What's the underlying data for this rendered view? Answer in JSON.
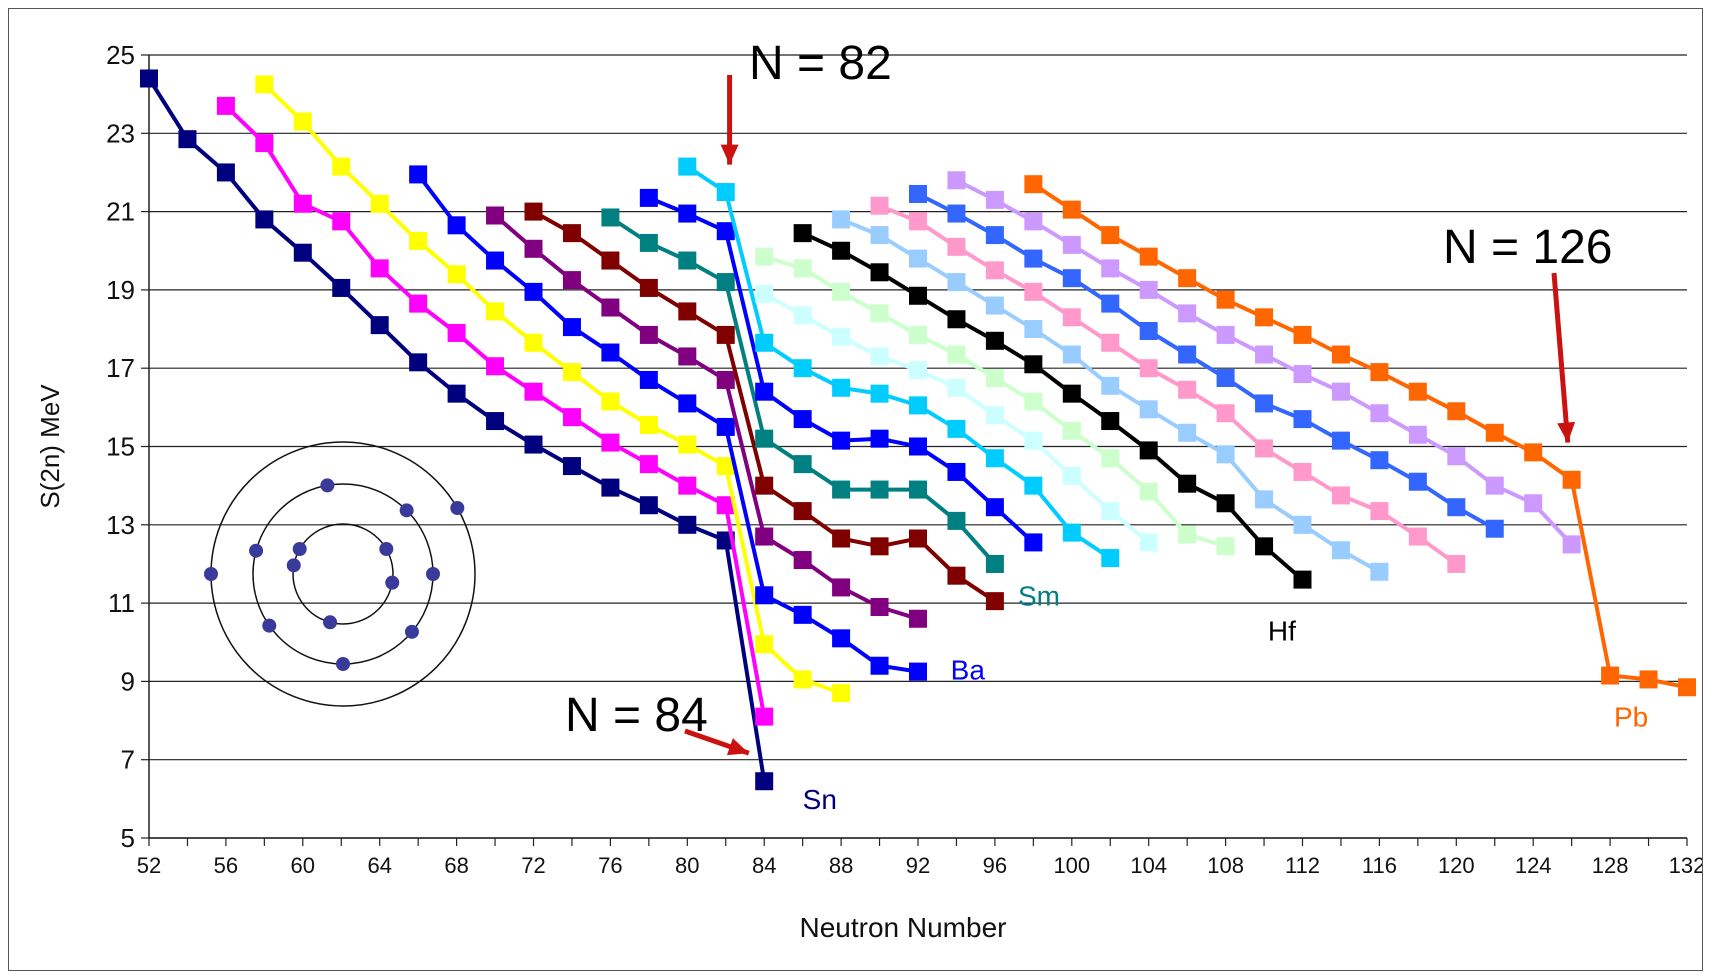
{
  "chart_data": {
    "type": "line",
    "xlabel": "Neutron Number",
    "ylabel": "S(2n) MeV",
    "xlim": [
      52,
      132
    ],
    "ylim": [
      5,
      25
    ],
    "x_ticks": [
      "52",
      "56",
      "60",
      "64",
      "68",
      "72",
      "76",
      "80",
      "84",
      "88",
      "92",
      "96",
      "100",
      "104",
      "108",
      "112",
      "116",
      "120",
      "124",
      "128",
      "132"
    ],
    "y_ticks": [
      "5",
      "7",
      "9",
      "11",
      "13",
      "15",
      "17",
      "19",
      "21",
      "23",
      "25"
    ],
    "grid": "horizontal",
    "annotations": [
      {
        "text": "N = 82",
        "x": 82.2,
        "y": 22.2
      },
      {
        "text": "N = 84",
        "x": 83.2,
        "y": 6.4
      },
      {
        "text": "N = 126",
        "x": 125.8,
        "y": 15.1
      }
    ],
    "series": [
      {
        "name": "Sn",
        "label_at": [
          86.0,
          6.0
        ],
        "color": "#00007f",
        "points": [
          [
            52,
            24.4
          ],
          [
            54,
            22.85
          ],
          [
            56,
            22.0
          ],
          [
            58,
            20.8
          ],
          [
            60,
            19.95
          ],
          [
            62,
            19.05
          ],
          [
            64,
            18.1
          ],
          [
            66,
            17.15
          ],
          [
            68,
            16.35
          ],
          [
            70,
            15.65
          ],
          [
            72,
            15.05
          ],
          [
            74,
            14.5
          ],
          [
            76,
            13.95
          ],
          [
            78,
            13.5
          ],
          [
            80,
            13.0
          ],
          [
            82,
            12.6
          ],
          [
            84,
            6.45
          ]
        ]
      },
      {
        "name": "",
        "color": "#ff00ff",
        "points": [
          [
            56,
            23.7
          ],
          [
            58,
            22.75
          ],
          [
            60,
            21.2
          ],
          [
            62,
            20.75
          ],
          [
            64,
            19.55
          ],
          [
            66,
            18.65
          ],
          [
            68,
            17.9
          ],
          [
            70,
            17.05
          ],
          [
            72,
            16.4
          ],
          [
            74,
            15.75
          ],
          [
            76,
            15.1
          ],
          [
            78,
            14.55
          ],
          [
            80,
            14.0
          ],
          [
            82,
            13.5
          ],
          [
            84,
            8.1
          ]
        ]
      },
      {
        "name": "",
        "color": "#ffff00",
        "points": [
          [
            58,
            24.25
          ],
          [
            60,
            23.3
          ],
          [
            62,
            22.15
          ],
          [
            64,
            21.2
          ],
          [
            66,
            20.25
          ],
          [
            68,
            19.4
          ],
          [
            70,
            18.45
          ],
          [
            72,
            17.65
          ],
          [
            74,
            16.9
          ],
          [
            76,
            16.15
          ],
          [
            78,
            15.55
          ],
          [
            80,
            15.05
          ],
          [
            82,
            14.5
          ],
          [
            84,
            9.95
          ],
          [
            86,
            9.05
          ],
          [
            88,
            8.7
          ]
        ]
      },
      {
        "name": "Ba",
        "label_at": [
          93.7,
          9.3
        ],
        "color": "#0000ff",
        "points": [
          [
            66,
            21.95
          ],
          [
            68,
            20.65
          ],
          [
            70,
            19.75
          ],
          [
            72,
            18.95
          ],
          [
            74,
            18.05
          ],
          [
            76,
            17.4
          ],
          [
            78,
            16.7
          ],
          [
            80,
            16.1
          ],
          [
            82,
            15.5
          ],
          [
            84,
            11.2
          ],
          [
            86,
            10.7
          ],
          [
            88,
            10.1
          ],
          [
            90,
            9.4
          ],
          [
            92,
            9.25
          ]
        ]
      },
      {
        "name": "",
        "color": "#800080",
        "points": [
          [
            70,
            20.9
          ],
          [
            72,
            20.05
          ],
          [
            74,
            19.25
          ],
          [
            76,
            18.55
          ],
          [
            78,
            17.85
          ],
          [
            80,
            17.3
          ],
          [
            82,
            16.7
          ],
          [
            84,
            12.7
          ],
          [
            86,
            12.1
          ],
          [
            88,
            11.4
          ],
          [
            90,
            10.9
          ],
          [
            92,
            10.6
          ]
        ]
      },
      {
        "name": "",
        "color": "#800000",
        "points": [
          [
            72,
            21.0
          ],
          [
            74,
            20.45
          ],
          [
            76,
            19.75
          ],
          [
            78,
            19.05
          ],
          [
            80,
            18.45
          ],
          [
            82,
            17.85
          ],
          [
            84,
            14.0
          ],
          [
            86,
            13.35
          ],
          [
            88,
            12.65
          ],
          [
            90,
            12.45
          ],
          [
            92,
            12.65
          ],
          [
            94,
            11.7
          ],
          [
            96,
            11.05
          ]
        ]
      },
      {
        "name": "Sm",
        "label_at": [
          97.2,
          11.2
        ],
        "color": "#008080",
        "points": [
          [
            76,
            20.85
          ],
          [
            78,
            20.2
          ],
          [
            80,
            19.75
          ],
          [
            82,
            19.2
          ],
          [
            84,
            15.2
          ],
          [
            86,
            14.55
          ],
          [
            88,
            13.9
          ],
          [
            90,
            13.9
          ],
          [
            92,
            13.9
          ],
          [
            94,
            13.1
          ],
          [
            96,
            12.0
          ]
        ]
      },
      {
        "name": "",
        "color": "#0000ff",
        "points": [
          [
            78,
            21.35
          ],
          [
            80,
            20.95
          ],
          [
            82,
            20.5
          ],
          [
            84,
            16.4
          ],
          [
            86,
            15.7
          ],
          [
            88,
            15.15
          ],
          [
            90,
            15.2
          ],
          [
            92,
            15.0
          ],
          [
            94,
            14.35
          ],
          [
            96,
            13.45
          ],
          [
            98,
            12.55
          ]
        ]
      },
      {
        "name": "",
        "color": "#00ccff",
        "points": [
          [
            80,
            22.15
          ],
          [
            82,
            21.5
          ],
          [
            84,
            17.65
          ],
          [
            86,
            17.0
          ],
          [
            88,
            16.5
          ],
          [
            90,
            16.35
          ],
          [
            92,
            16.05
          ],
          [
            94,
            15.45
          ],
          [
            96,
            14.7
          ],
          [
            98,
            14.0
          ],
          [
            100,
            12.8
          ],
          [
            102,
            12.15
          ]
        ]
      },
      {
        "name": "",
        "color": "#ccffff",
        "points": [
          [
            84,
            18.9
          ],
          [
            86,
            18.35
          ],
          [
            88,
            17.8
          ],
          [
            90,
            17.3
          ],
          [
            92,
            16.95
          ],
          [
            94,
            16.5
          ],
          [
            96,
            15.8
          ],
          [
            98,
            15.15
          ],
          [
            100,
            14.25
          ],
          [
            102,
            13.35
          ],
          [
            104,
            12.55
          ]
        ]
      },
      {
        "name": "",
        "color": "#ccffcc",
        "points": [
          [
            84,
            19.85
          ],
          [
            86,
            19.55
          ],
          [
            88,
            18.95
          ],
          [
            90,
            18.4
          ],
          [
            92,
            17.85
          ],
          [
            94,
            17.35
          ],
          [
            96,
            16.75
          ],
          [
            98,
            16.15
          ],
          [
            100,
            15.4
          ],
          [
            102,
            14.7
          ],
          [
            104,
            13.85
          ],
          [
            106,
            12.75
          ],
          [
            108,
            12.45
          ]
        ]
      },
      {
        "name": "Hf",
        "label_at": [
          110.2,
          10.3
        ],
        "color": "#000000",
        "points": [
          [
            86,
            20.45
          ],
          [
            88,
            20.0
          ],
          [
            90,
            19.45
          ],
          [
            92,
            18.85
          ],
          [
            94,
            18.25
          ],
          [
            96,
            17.7
          ],
          [
            98,
            17.1
          ],
          [
            100,
            16.35
          ],
          [
            102,
            15.65
          ],
          [
            104,
            14.9
          ],
          [
            106,
            14.05
          ],
          [
            108,
            13.55
          ],
          [
            110,
            12.45
          ],
          [
            112,
            11.6
          ]
        ]
      },
      {
        "name": "",
        "color": "#99ccff",
        "points": [
          [
            88,
            20.8
          ],
          [
            90,
            20.4
          ],
          [
            92,
            19.8
          ],
          [
            94,
            19.2
          ],
          [
            96,
            18.6
          ],
          [
            98,
            18.0
          ],
          [
            100,
            17.35
          ],
          [
            102,
            16.55
          ],
          [
            104,
            15.95
          ],
          [
            106,
            15.35
          ],
          [
            108,
            14.8
          ],
          [
            110,
            13.65
          ],
          [
            112,
            13.0
          ],
          [
            114,
            12.35
          ],
          [
            116,
            11.8
          ]
        ]
      },
      {
        "name": "",
        "color": "#ff99cc",
        "points": [
          [
            90,
            21.15
          ],
          [
            92,
            20.75
          ],
          [
            94,
            20.1
          ],
          [
            96,
            19.5
          ],
          [
            98,
            18.95
          ],
          [
            100,
            18.3
          ],
          [
            102,
            17.65
          ],
          [
            104,
            17.0
          ],
          [
            106,
            16.45
          ],
          [
            108,
            15.85
          ],
          [
            110,
            14.95
          ],
          [
            112,
            14.35
          ],
          [
            114,
            13.75
          ],
          [
            116,
            13.35
          ],
          [
            118,
            12.7
          ],
          [
            120,
            12.0
          ]
        ]
      },
      {
        "name": "",
        "color": "#3366ff",
        "points": [
          [
            92,
            21.45
          ],
          [
            94,
            20.95
          ],
          [
            96,
            20.4
          ],
          [
            98,
            19.8
          ],
          [
            100,
            19.3
          ],
          [
            102,
            18.65
          ],
          [
            104,
            17.95
          ],
          [
            106,
            17.35
          ],
          [
            108,
            16.75
          ],
          [
            110,
            16.1
          ],
          [
            112,
            15.7
          ],
          [
            114,
            15.15
          ],
          [
            116,
            14.65
          ],
          [
            118,
            14.1
          ],
          [
            120,
            13.45
          ],
          [
            122,
            12.9
          ]
        ]
      },
      {
        "name": "",
        "color": "#cc99ff",
        "points": [
          [
            94,
            21.8
          ],
          [
            96,
            21.3
          ],
          [
            98,
            20.75
          ],
          [
            100,
            20.15
          ],
          [
            102,
            19.55
          ],
          [
            104,
            19.0
          ],
          [
            106,
            18.4
          ],
          [
            108,
            17.85
          ],
          [
            110,
            17.35
          ],
          [
            112,
            16.85
          ],
          [
            114,
            16.4
          ],
          [
            116,
            15.85
          ],
          [
            118,
            15.3
          ],
          [
            120,
            14.75
          ],
          [
            122,
            14.0
          ],
          [
            124,
            13.55
          ],
          [
            126,
            12.5
          ]
        ]
      },
      {
        "name": "Pb",
        "label_at": [
          128.2,
          8.1
        ],
        "color": "#ff6600",
        "points": [
          [
            98,
            21.7
          ],
          [
            100,
            21.05
          ],
          [
            102,
            20.4
          ],
          [
            104,
            19.85
          ],
          [
            106,
            19.3
          ],
          [
            108,
            18.75
          ],
          [
            110,
            18.3
          ],
          [
            112,
            17.85
          ],
          [
            114,
            17.35
          ],
          [
            116,
            16.9
          ],
          [
            118,
            16.4
          ],
          [
            120,
            15.9
          ],
          [
            122,
            15.35
          ],
          [
            124,
            14.85
          ],
          [
            126,
            14.15
          ],
          [
            128,
            9.15
          ],
          [
            130,
            9.05
          ],
          [
            132,
            8.85
          ]
        ]
      }
    ]
  }
}
